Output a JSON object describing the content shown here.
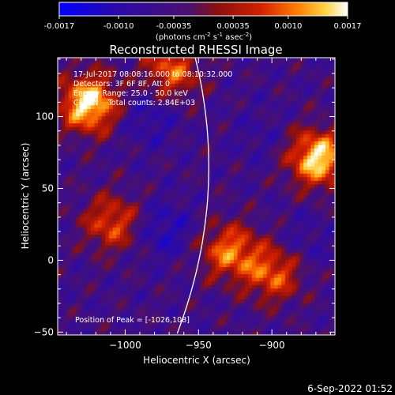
{
  "chart_data": {
    "type": "heatmap",
    "title": "Reconstructed RHESSI Image",
    "colorbar": {
      "ticks": [
        "-0.0017",
        "-0.0010",
        "-0.00035",
        "0.00035",
        "0.0010",
        "0.0017"
      ],
      "tick_values": [
        -0.0017,
        -0.001,
        -0.00035,
        0.00035,
        0.001,
        0.0017
      ],
      "units_prefix": "(photons cm",
      "units_sup1": "-2",
      "units_mid": " s",
      "units_sup2": "-1",
      "units_mid2": " asec",
      "units_sup3": "-2",
      "units_suffix": ")",
      "range": [
        -0.0017,
        0.0017
      ]
    },
    "xlabel": "Heliocentric X (arcsec)",
    "ylabel": "Heliocentric Y (arcsec)",
    "x_ticks": [
      {
        "value": -1000,
        "label": "−1000"
      },
      {
        "value": -950,
        "label": "−950"
      },
      {
        "value": -900,
        "label": "−900"
      }
    ],
    "y_ticks": [
      {
        "value": 100,
        "label": "100"
      },
      {
        "value": 50,
        "label": "50"
      },
      {
        "value": 0,
        "label": "0"
      },
      {
        "value": -50,
        "label": "−50"
      }
    ],
    "xlim": [
      -1046,
      -857
    ],
    "ylim": [
      -52,
      141
    ],
    "annotations": [
      "17-Jul-2017 08:08:16.000 to 08:10:32.000",
      "Detectors: 3F 6F 8F, Att 0",
      "Energy Range: 25.0 - 50.0 keV",
      "CLEAN    Total counts: 2.84E+03"
    ],
    "peak_label": "Position of Peak = [-1026,108]",
    "peak": {
      "x": -1026,
      "y": 108
    },
    "limb_x_approx": -944,
    "bright_sources": [
      {
        "x": -1026,
        "y": 108,
        "level": 0.0017
      },
      {
        "x": -870,
        "y": 70,
        "level": 0.0016
      },
      {
        "x": -970,
        "y": 130,
        "level": 0.0009
      },
      {
        "x": -930,
        "y": 5,
        "level": 0.001
      },
      {
        "x": -1010,
        "y": 25,
        "level": 0.0008
      },
      {
        "x": -900,
        "y": -10,
        "level": 0.0009
      }
    ],
    "dim_regions": [
      {
        "x": -985,
        "y": 100,
        "level": -0.001
      },
      {
        "x": -975,
        "y": 20,
        "level": -0.0011
      },
      {
        "x": -910,
        "y": 85,
        "level": -0.0007
      },
      {
        "x": -880,
        "y": 10,
        "level": -0.0008
      }
    ]
  },
  "footer": {
    "date": "6-Sep-2022 01:52"
  }
}
